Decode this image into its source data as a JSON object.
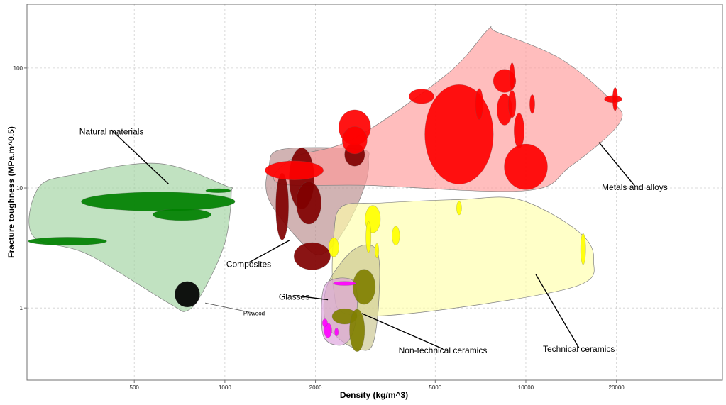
{
  "chart_data": {
    "type": "scatter",
    "subtype": "material-property-bubble-chart",
    "xlabel": "Density (kg/m^3)",
    "ylabel": "Fracture toughness (MPa.m^0.5)",
    "xscale": "log",
    "yscale": "log",
    "xlim": [
      220,
      45000
    ],
    "ylim": [
      0.25,
      340
    ],
    "grid": true,
    "x_ticks": [
      {
        "value": 500,
        "label": "500"
      },
      {
        "value": 1000,
        "label": "1000"
      },
      {
        "value": 2000,
        "label": "2000"
      },
      {
        "value": 5000,
        "label": "5000"
      },
      {
        "value": 10000,
        "label": "10000"
      },
      {
        "value": 20000,
        "label": "20000"
      }
    ],
    "y_ticks": [
      {
        "value": 1,
        "label": "1"
      },
      {
        "value": 10,
        "label": "10"
      },
      {
        "value": 100,
        "label": "100"
      }
    ],
    "series": [
      {
        "name": "Natural materials",
        "color": "#008000",
        "envelope_color": "#9fd29f",
        "envelope": [
          [
            240,
            10
          ],
          [
            320,
            13
          ],
          [
            600,
            16
          ],
          [
            1000,
            10.5
          ],
          [
            1050,
            9
          ],
          [
            1000,
            3.5
          ],
          [
            850,
            1.4
          ],
          [
            750,
            0.95
          ],
          [
            650,
            1.1
          ],
          [
            350,
            2.8
          ],
          [
            230,
            4
          ]
        ],
        "bubbles": [
          {
            "x": 600,
            "y": 7.7,
            "rx": 1.8,
            "ry": 1.2
          },
          {
            "x": 720,
            "y": 6,
            "rx": 1.25,
            "ry": 1.12
          },
          {
            "x": 950,
            "y": 9.5,
            "rx": 1.1,
            "ry": 1.04
          },
          {
            "x": 300,
            "y": 3.6,
            "rx": 1.35,
            "ry": 1.08
          }
        ]
      },
      {
        "name": "Plywood",
        "color": "#000000",
        "bubbles": [
          {
            "x": 750,
            "y": 1.3,
            "rx": 1.1,
            "ry": 1.28
          }
        ]
      },
      {
        "name": "Composites",
        "color": "#800000",
        "envelope_color": "#b98a8a",
        "envelope": [
          [
            1550,
            21
          ],
          [
            2800,
            21
          ],
          [
            3000,
            17
          ],
          [
            2900,
            10
          ],
          [
            2500,
            4.5
          ],
          [
            2100,
            2.8
          ],
          [
            1800,
            3.5
          ],
          [
            1400,
            8
          ],
          [
            1400,
            15
          ]
        ],
        "bubbles": [
          {
            "x": 1550,
            "y": 7,
            "rx": 1.05,
            "ry": 1.9
          },
          {
            "x": 1800,
            "y": 12,
            "rx": 1.1,
            "ry": 1.8
          },
          {
            "x": 1900,
            "y": 7.5,
            "rx": 1.1,
            "ry": 1.5
          },
          {
            "x": 1950,
            "y": 2.7,
            "rx": 1.15,
            "ry": 1.3
          },
          {
            "x": 2700,
            "y": 19,
            "rx": 1.08,
            "ry": 1.25
          }
        ]
      },
      {
        "name": "Metals and alloys",
        "color": "#ff0000",
        "envelope_color": "#ff9a9a",
        "envelope": [
          [
            1700,
            18
          ],
          [
            2700,
            26
          ],
          [
            5500,
            90
          ],
          [
            7500,
            210
          ],
          [
            8000,
            200
          ],
          [
            13000,
            120
          ],
          [
            19000,
            55
          ],
          [
            20500,
            35
          ],
          [
            14000,
            15
          ],
          [
            10000,
            9.5
          ],
          [
            3000,
            10.5
          ],
          [
            1500,
            11
          ]
        ],
        "bubbles": [
          {
            "x": 1700,
            "y": 14,
            "rx": 1.25,
            "ry": 1.2
          },
          {
            "x": 2700,
            "y": 32,
            "rx": 1.13,
            "ry": 1.4
          },
          {
            "x": 2700,
            "y": 25,
            "rx": 1.1,
            "ry": 1.3
          },
          {
            "x": 4500,
            "y": 58,
            "rx": 1.1,
            "ry": 1.15
          },
          {
            "x": 6000,
            "y": 28,
            "rx": 1.3,
            "ry": 2.6
          },
          {
            "x": 7000,
            "y": 50,
            "rx": 1.03,
            "ry": 1.35
          },
          {
            "x": 8500,
            "y": 78,
            "rx": 1.09,
            "ry": 1.25
          },
          {
            "x": 8500,
            "y": 45,
            "rx": 1.06,
            "ry": 1.35
          },
          {
            "x": 9000,
            "y": 50,
            "rx": 1.03,
            "ry": 1.3
          },
          {
            "x": 9000,
            "y": 85,
            "rx": 1.02,
            "ry": 1.3
          },
          {
            "x": 9500,
            "y": 30,
            "rx": 1.04,
            "ry": 1.4
          },
          {
            "x": 10000,
            "y": 15,
            "rx": 1.18,
            "ry": 1.55
          },
          {
            "x": 10500,
            "y": 50,
            "rx": 1.02,
            "ry": 1.2
          },
          {
            "x": 19500,
            "y": 55,
            "rx": 1.07,
            "ry": 1.07
          },
          {
            "x": 19800,
            "y": 55,
            "rx": 1.02,
            "ry": 1.25
          }
        ]
      },
      {
        "name": "Technical ceramics",
        "color": "#ffff00",
        "envelope_color": "#ffffaa",
        "envelope": [
          [
            2450,
            7
          ],
          [
            3300,
            7.5
          ],
          [
            6000,
            8
          ],
          [
            9500,
            8
          ],
          [
            15000,
            4.3
          ],
          [
            16800,
            2.5
          ],
          [
            14500,
            1.5
          ],
          [
            5000,
            0.95
          ],
          [
            2600,
            0.88
          ],
          [
            2300,
            1.4
          ],
          [
            2300,
            4
          ]
        ],
        "bubbles": [
          {
            "x": 2300,
            "y": 3.2,
            "rx": 1.04,
            "ry": 1.2
          },
          {
            "x": 3100,
            "y": 5.5,
            "rx": 1.06,
            "ry": 1.3
          },
          {
            "x": 3000,
            "y": 3.9,
            "rx": 1.02,
            "ry": 1.35
          },
          {
            "x": 3200,
            "y": 3,
            "rx": 1.015,
            "ry": 1.15
          },
          {
            "x": 3700,
            "y": 4,
            "rx": 1.03,
            "ry": 1.2
          },
          {
            "x": 6000,
            "y": 6.8,
            "rx": 1.02,
            "ry": 1.14
          },
          {
            "x": 15500,
            "y": 3.1,
            "rx": 1.02,
            "ry": 1.35
          }
        ]
      },
      {
        "name": "Non-technical ceramics",
        "color": "#808000",
        "envelope_color": "#c9c58e",
        "envelope": [
          [
            2200,
            1.6
          ],
          [
            2700,
            3.1
          ],
          [
            3200,
            3
          ],
          [
            3250,
            1.2
          ],
          [
            3100,
            0.5
          ],
          [
            2800,
            0.45
          ],
          [
            2400,
            0.55
          ],
          [
            2150,
            0.8
          ]
        ],
        "bubbles": [
          {
            "x": 2900,
            "y": 1.5,
            "rx": 1.09,
            "ry": 1.4
          },
          {
            "x": 2500,
            "y": 0.85,
            "rx": 1.1,
            "ry": 1.16
          },
          {
            "x": 2750,
            "y": 0.65,
            "rx": 1.06,
            "ry": 1.5
          }
        ]
      },
      {
        "name": "Glasses",
        "color": "#ff00ff",
        "envelope_color": "#dca0dc",
        "envelope": [
          [
            2150,
            1.55
          ],
          [
            2600,
            1.75
          ],
          [
            2750,
            1.3
          ],
          [
            2700,
            0.7
          ],
          [
            2500,
            0.5
          ],
          [
            2200,
            0.52
          ],
          [
            2100,
            0.7
          ]
        ],
        "bubbles": [
          {
            "x": 2500,
            "y": 1.6,
            "rx": 1.09,
            "ry": 1.04
          },
          {
            "x": 2200,
            "y": 0.65,
            "rx": 1.03,
            "ry": 1.15
          },
          {
            "x": 2350,
            "y": 0.63,
            "rx": 1.015,
            "ry": 1.08
          },
          {
            "x": 2150,
            "y": 0.75,
            "rx": 1.02,
            "ry": 1.08
          }
        ]
      }
    ],
    "annotations": [
      {
        "text": "Natural materials",
        "x": 420,
        "y": 28,
        "anchor_x": 650,
        "anchor_y": 10.8,
        "series": "Natural materials"
      },
      {
        "text": "Plywood",
        "x": 1250,
        "y": 0.87,
        "anchor_x": 860,
        "anchor_y": 1.1,
        "series": "Plywood"
      },
      {
        "text": "Composites",
        "x": 1200,
        "y": 2.2,
        "anchor_x": 1650,
        "anchor_y": 3.7,
        "series": "Composites"
      },
      {
        "text": "Glasses",
        "x": 1700,
        "y": 1.17,
        "anchor_x": 2200,
        "anchor_y": 1.17,
        "series": "Glasses"
      },
      {
        "text": "Non-technical ceramics",
        "x": 5300,
        "y": 0.42,
        "anchor_x": 2850,
        "anchor_y": 0.9,
        "series": "Non-technical ceramics"
      },
      {
        "text": "Technical ceramics",
        "x": 15000,
        "y": 0.43,
        "anchor_x": 10800,
        "anchor_y": 1.9,
        "series": "Technical ceramics"
      },
      {
        "text": "Metals and alloys",
        "x": 23000,
        "y": 9.6,
        "anchor_x": 17500,
        "anchor_y": 24,
        "series": "Metals and alloys"
      }
    ]
  }
}
